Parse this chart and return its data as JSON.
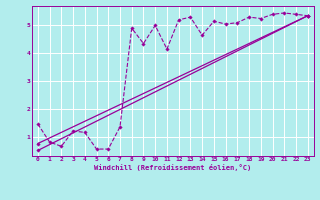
{
  "xlabel": "Windchill (Refroidissement éolien,°C)",
  "background_color": "#b2eded",
  "line_color": "#990099",
  "grid_color": "#ffffff",
  "x_ticks": [
    0,
    1,
    2,
    3,
    4,
    5,
    6,
    7,
    8,
    9,
    10,
    11,
    12,
    13,
    14,
    15,
    16,
    17,
    18,
    19,
    20,
    21,
    22,
    23
  ],
  "y_ticks": [
    1,
    2,
    3,
    4,
    5
  ],
  "xlim": [
    -0.5,
    23.5
  ],
  "ylim": [
    0.3,
    5.7
  ],
  "line1_x": [
    0,
    1,
    2,
    3,
    4,
    5,
    6,
    7,
    8,
    9,
    10,
    11,
    12,
    13,
    14,
    15,
    16,
    17,
    18,
    19,
    20,
    21,
    22,
    23
  ],
  "line1_y": [
    1.45,
    0.8,
    0.65,
    1.2,
    1.15,
    0.55,
    0.55,
    1.35,
    4.9,
    4.35,
    5.0,
    4.15,
    5.2,
    5.3,
    4.65,
    5.15,
    5.05,
    5.1,
    5.3,
    5.25,
    5.4,
    5.45,
    5.4,
    5.35
  ],
  "line2_x": [
    0,
    23
  ],
  "line2_y": [
    0.5,
    5.35
  ],
  "line3_x": [
    0,
    23
  ],
  "line3_y": [
    0.75,
    5.35
  ]
}
